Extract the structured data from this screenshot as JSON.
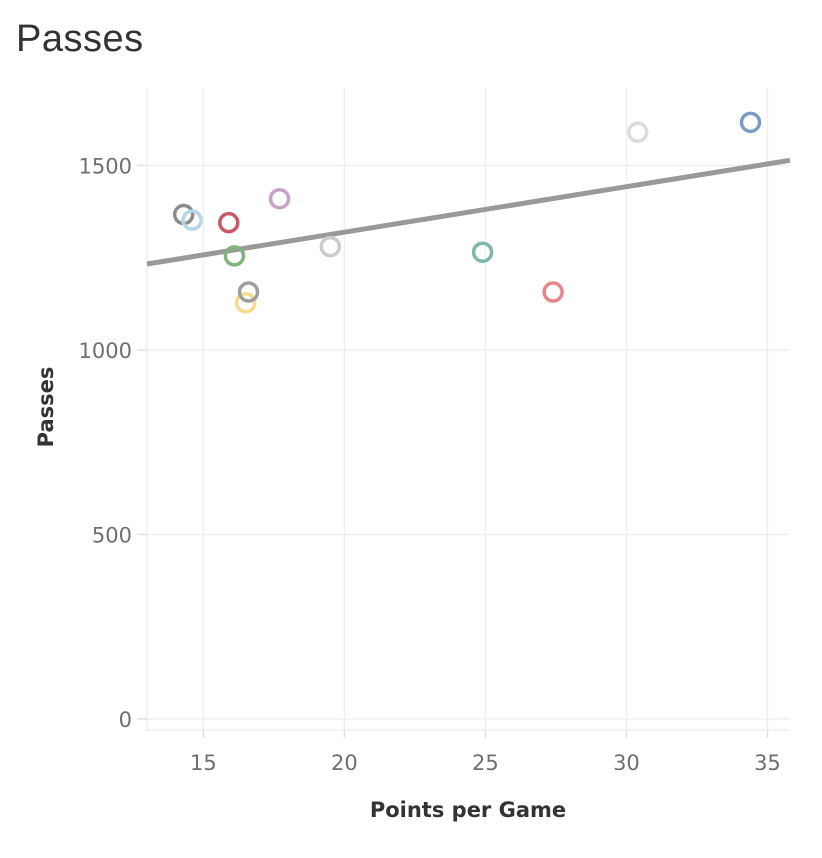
{
  "title": "Passes",
  "chart_data": {
    "type": "scatter",
    "title": "Passes",
    "xlabel": "Points per Game",
    "ylabel": "Passes",
    "xlim": [
      13,
      35.8
    ],
    "ylim": [
      -30,
      1710
    ],
    "x_ticks": [
      15,
      20,
      25,
      30,
      35
    ],
    "y_ticks": [
      0,
      500,
      1000,
      1500
    ],
    "grid": true,
    "points": [
      {
        "x": 14.3,
        "y": 1367,
        "color": "#8c8c8c"
      },
      {
        "x": 14.6,
        "y": 1352,
        "color": "#b8d6ea"
      },
      {
        "x": 15.9,
        "y": 1345,
        "color": "#c85a67"
      },
      {
        "x": 16.1,
        "y": 1255,
        "color": "#7fb57a"
      },
      {
        "x": 16.5,
        "y": 1128,
        "color": "#f6dc8a"
      },
      {
        "x": 16.6,
        "y": 1157,
        "color": "#9e9e9e"
      },
      {
        "x": 17.7,
        "y": 1410,
        "color": "#c7a2c6"
      },
      {
        "x": 19.5,
        "y": 1280,
        "color": "#cccccc"
      },
      {
        "x": 24.9,
        "y": 1265,
        "color": "#7fb6ad"
      },
      {
        "x": 27.4,
        "y": 1157,
        "color": "#e8858b"
      },
      {
        "x": 30.4,
        "y": 1590,
        "color": "#dcdcdc"
      },
      {
        "x": 34.4,
        "y": 1617,
        "color": "#7c9cc8"
      }
    ],
    "trend_line": {
      "x": [
        13,
        35.8
      ],
      "y": [
        1233,
        1514
      ],
      "color": "#999999"
    }
  }
}
